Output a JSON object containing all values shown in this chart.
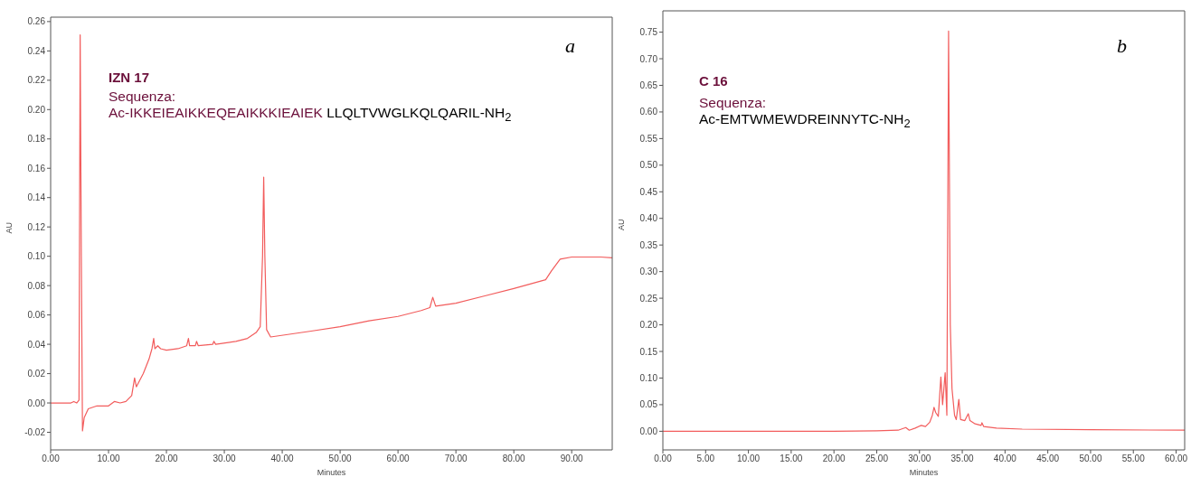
{
  "chart_data": [
    {
      "type": "line",
      "xlabel": "Minutes",
      "ylabel": "AU",
      "annotations": [
        "a",
        "IZN 17",
        "Sequenza:",
        "Ac-IKKEIEAIKKEQEAIKKKIEAIEK",
        "LLQLTVWGLKQLQARIL-NH$_{2}$"
      ],
      "xlim": [
        0,
        97
      ],
      "ylim": [
        -0.032,
        0.263
      ],
      "xticks": [
        {
          "value": 0,
          "label": "0.00"
        },
        {
          "value": 10,
          "label": "10.00"
        },
        {
          "value": 20,
          "label": "20.00"
        },
        {
          "value": 30,
          "label": "30.00"
        },
        {
          "value": 40,
          "label": "40.00"
        },
        {
          "value": 50,
          "label": "50.00"
        },
        {
          "value": 60,
          "label": "60.00"
        },
        {
          "value": 70,
          "label": "70.00"
        },
        {
          "value": 80,
          "label": "80.00"
        },
        {
          "value": 90,
          "label": "90.00"
        }
      ],
      "yticks": [
        {
          "value": -0.02,
          "label": "-0.02"
        },
        {
          "value": 0,
          "label": "0.00"
        },
        {
          "value": 0.02,
          "label": "0.02"
        },
        {
          "value": 0.04,
          "label": "0.04"
        },
        {
          "value": 0.06,
          "label": "0.06"
        },
        {
          "value": 0.08,
          "label": "0.08"
        },
        {
          "value": 0.1,
          "label": "0.10"
        },
        {
          "value": 0.12,
          "label": "0.12"
        },
        {
          "value": 0.14,
          "label": "0.14"
        },
        {
          "value": 0.16,
          "label": "0.16"
        },
        {
          "value": 0.18,
          "label": "0.18"
        },
        {
          "value": 0.2,
          "label": "0.20"
        },
        {
          "value": 0.22,
          "label": "0.22"
        },
        {
          "value": 0.24,
          "label": "0.24"
        },
        {
          "value": 0.26,
          "label": "0.26"
        }
      ],
      "series": [
        {
          "color": "#f25c5c",
          "x": [
            0,
            3.5,
            4,
            4.5,
            4.9,
            5.1,
            5.3,
            5.5,
            5.8,
            6.5,
            8,
            10,
            11,
            12,
            13,
            14,
            14.5,
            14.8,
            16,
            17,
            17.5,
            17.8,
            18,
            18.5,
            19,
            20,
            22,
            23.5,
            23.8,
            24,
            25,
            25.2,
            25.5,
            28,
            28.2,
            28.5,
            32,
            34,
            35.5,
            36.2,
            36.6,
            36.8,
            37,
            37.3,
            38,
            45,
            50,
            55,
            60,
            64,
            65.5,
            66,
            66.5,
            70,
            75,
            80,
            85.5,
            86.5,
            88,
            90,
            95,
            97
          ],
          "values": [
            0,
            0,
            0.001,
            0,
            0.002,
            0.251,
            0.1,
            -0.019,
            -0.01,
            -0.004,
            -0.002,
            -0.002,
            0.001,
            0,
            0.001,
            0.005,
            0.017,
            0.011,
            0.02,
            0.03,
            0.037,
            0.044,
            0.037,
            0.039,
            0.037,
            0.036,
            0.037,
            0.039,
            0.044,
            0.039,
            0.039,
            0.042,
            0.039,
            0.04,
            0.042,
            0.04,
            0.042,
            0.044,
            0.048,
            0.052,
            0.1,
            0.154,
            0.1,
            0.05,
            0.045,
            0.049,
            0.052,
            0.056,
            0.059,
            0.063,
            0.065,
            0.072,
            0.066,
            0.068,
            0.073,
            0.078,
            0.084,
            0.09,
            0.098,
            0.0995,
            0.0995,
            0.099
          ]
        }
      ]
    },
    {
      "type": "line",
      "xlabel": "Minutes",
      "ylabel": "AU",
      "annotations": [
        "b",
        "C 16",
        "Sequenza:",
        "Ac-EMTWMEWDREINNYTC-NH$_{2}$"
      ],
      "xlim": [
        0,
        61
      ],
      "ylim": [
        -0.035,
        0.79
      ],
      "xticks": [
        {
          "value": 0,
          "label": "0.00"
        },
        {
          "value": 5,
          "label": "5.00"
        },
        {
          "value": 10,
          "label": "10.00"
        },
        {
          "value": 15,
          "label": "15.00"
        },
        {
          "value": 20,
          "label": "20.00"
        },
        {
          "value": 25,
          "label": "25.00"
        },
        {
          "value": 30,
          "label": "30.00"
        },
        {
          "value": 35,
          "label": "35.00"
        },
        {
          "value": 40,
          "label": "40.00"
        },
        {
          "value": 45,
          "label": "45.00"
        },
        {
          "value": 50,
          "label": "50.00"
        },
        {
          "value": 55,
          "label": "55.00"
        },
        {
          "value": 60,
          "label": "60.00"
        }
      ],
      "yticks": [
        {
          "value": 0,
          "label": "0.00"
        },
        {
          "value": 0.05,
          "label": "0.05"
        },
        {
          "value": 0.1,
          "label": "0.10"
        },
        {
          "value": 0.15,
          "label": "0.15"
        },
        {
          "value": 0.2,
          "label": "0.20"
        },
        {
          "value": 0.25,
          "label": "0.25"
        },
        {
          "value": 0.3,
          "label": "0.30"
        },
        {
          "value": 0.35,
          "label": "0.35"
        },
        {
          "value": 0.4,
          "label": "0.40"
        },
        {
          "value": 0.45,
          "label": "0.45"
        },
        {
          "value": 0.5,
          "label": "0.50"
        },
        {
          "value": 0.55,
          "label": "0.55"
        },
        {
          "value": 0.6,
          "label": "0.60"
        },
        {
          "value": 0.65,
          "label": "0.65"
        },
        {
          "value": 0.7,
          "label": "0.70"
        },
        {
          "value": 0.75,
          "label": "0.75"
        }
      ],
      "series": [
        {
          "color": "#f25c5c",
          "x": [
            0,
            20,
            25,
            27.5,
            28.4,
            28.8,
            29.5,
            30.2,
            30.7,
            31.2,
            31.5,
            31.7,
            31.9,
            32.2,
            32.5,
            32.7,
            33,
            33.2,
            33.4,
            33.6,
            33.8,
            34.1,
            34.3,
            34.6,
            34.8,
            35.3,
            35.7,
            35.9,
            36.5,
            37.2,
            37.3,
            37.5,
            39,
            42,
            50,
            61
          ],
          "values": [
            0,
            0,
            0.001,
            0.002,
            0.007,
            0.002,
            0.006,
            0.011,
            0.009,
            0.017,
            0.03,
            0.045,
            0.035,
            0.028,
            0.102,
            0.05,
            0.11,
            0.03,
            0.752,
            0.2,
            0.08,
            0.03,
            0.022,
            0.06,
            0.022,
            0.02,
            0.033,
            0.02,
            0.014,
            0.011,
            0.016,
            0.009,
            0.006,
            0.004,
            0.003,
            0.002
          ]
        }
      ]
    }
  ]
}
